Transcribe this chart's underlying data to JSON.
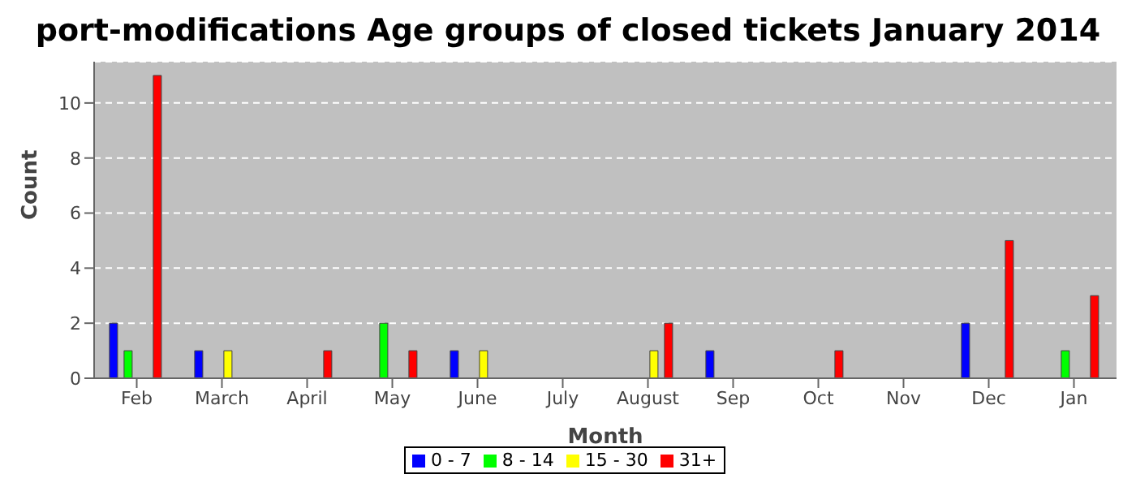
{
  "chart_data": {
    "type": "bar",
    "title": "port-modifications Age groups of closed tickets January 2014",
    "xlabel": "Month",
    "ylabel": "Count",
    "categories": [
      "Feb",
      "March",
      "April",
      "May",
      "June",
      "July",
      "August",
      "Sep",
      "Oct",
      "Nov",
      "Dec",
      "Jan"
    ],
    "series": [
      {
        "name": "0 - 7",
        "color": "#0000ff",
        "values": [
          2,
          1,
          0,
          0,
          1,
          0,
          0,
          1,
          0,
          0,
          2,
          0
        ]
      },
      {
        "name": "8 - 14",
        "color": "#00ff00",
        "values": [
          1,
          0,
          0,
          2,
          0,
          0,
          0,
          0,
          0,
          0,
          0,
          1
        ]
      },
      {
        "name": "15 - 30",
        "color": "#ffff00",
        "values": [
          0,
          1,
          0,
          0,
          1,
          0,
          1,
          0,
          0,
          0,
          0,
          0
        ]
      },
      {
        "name": "31+",
        "color": "#ff0000",
        "values": [
          11,
          0,
          1,
          1,
          0,
          0,
          2,
          0,
          1,
          0,
          5,
          3
        ]
      }
    ],
    "ylim": [
      0,
      11.5
    ],
    "yticks": [
      0,
      2,
      4,
      6,
      8,
      10
    ],
    "grid": "y",
    "legend": "bottom"
  }
}
